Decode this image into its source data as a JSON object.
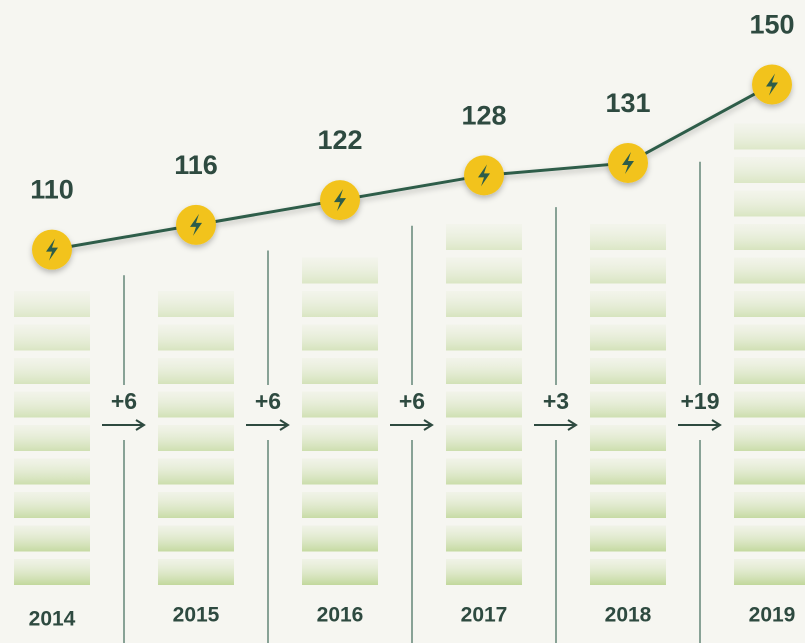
{
  "chart_data": {
    "type": "line",
    "categories": [
      "2014",
      "2015",
      "2016",
      "2017",
      "2018",
      "2019"
    ],
    "values": [
      110,
      116,
      122,
      128,
      131,
      150
    ],
    "color": "#2d5d4a",
    "marker_color": "#f2c31b",
    "ylim": [
      20,
      170
    ],
    "differences": {
      "values": [
        6,
        6,
        6,
        3,
        19
      ],
      "value_labels": [
        "+6",
        "+6",
        "+6",
        "+3",
        "+19"
      ]
    }
  }
}
